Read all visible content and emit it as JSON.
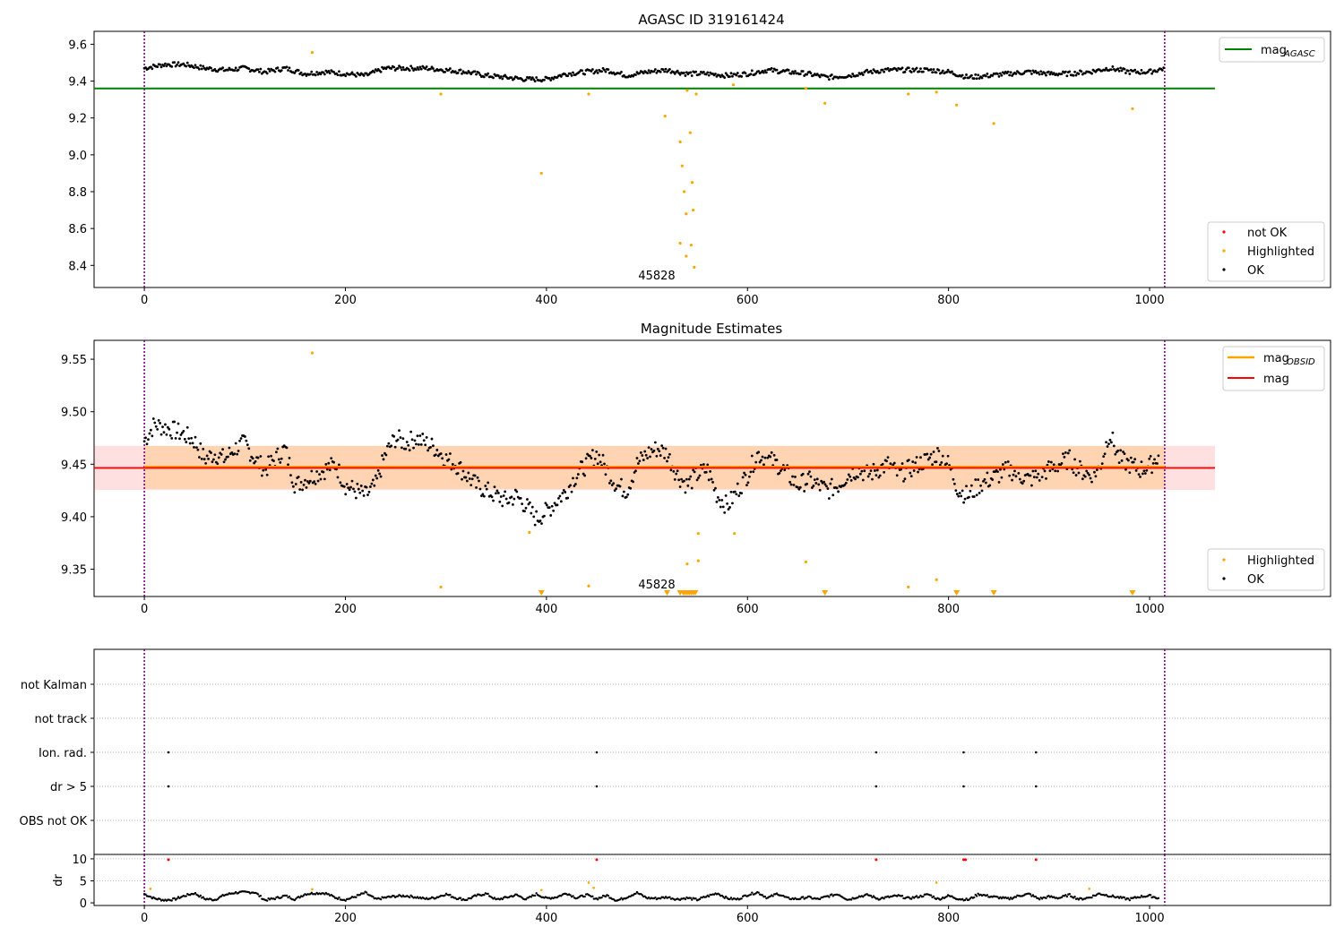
{
  "chart_data": [
    {
      "type": "scatter",
      "title": "AGASC ID 319161424",
      "xlim": [
        -50,
        1180
      ],
      "ylim": [
        8.28,
        9.67
      ],
      "xticks": [
        0,
        200,
        400,
        600,
        800,
        1000
      ],
      "yticks": [
        8.4,
        8.6,
        8.8,
        9.0,
        9.2,
        9.4,
        9.6
      ],
      "ytick_labels": [
        "8.4",
        "8.6",
        "8.8",
        "9.0",
        "9.2",
        "9.4",
        "9.6"
      ],
      "annotation": {
        "text": "45828",
        "x": 507,
        "y": 8.33
      },
      "vlines": [
        0,
        1015
      ],
      "hline": {
        "name": "mag_AGASC",
        "y": 9.36,
        "x0": -50,
        "x1": 1065,
        "color": "#008000"
      },
      "legend_top": [
        {
          "label": "mag",
          "sub": "AGASC",
          "color": "#008000"
        }
      ],
      "legend_bottom": [
        {
          "label": "not OK",
          "color": "#ff0000"
        },
        {
          "label": "Highlighted",
          "color": "#ffa500"
        },
        {
          "label": "OK",
          "color": "#000000"
        }
      ],
      "highlighted": [
        [
          167,
          9.555
        ],
        [
          295,
          9.33
        ],
        [
          395,
          8.9
        ],
        [
          442,
          9.33
        ],
        [
          518,
          9.21
        ],
        [
          533,
          9.07
        ],
        [
          535,
          8.94
        ],
        [
          537,
          8.8
        ],
        [
          539,
          8.68
        ],
        [
          533,
          8.52
        ],
        [
          539,
          8.45
        ],
        [
          543,
          9.12
        ],
        [
          545,
          8.85
        ],
        [
          546,
          8.7
        ],
        [
          544,
          8.51
        ],
        [
          547,
          8.39
        ],
        [
          549,
          9.33
        ],
        [
          540,
          9.35
        ],
        [
          586,
          9.38
        ],
        [
          658,
          9.36
        ],
        [
          677,
          9.28
        ],
        [
          760,
          9.33
        ],
        [
          788,
          9.34
        ],
        [
          808,
          9.27
        ],
        [
          845,
          9.17
        ],
        [
          983,
          9.25
        ]
      ],
      "ok_series": {
        "name": "OK",
        "x": [
          0,
          20,
          40,
          60,
          80,
          100,
          120,
          140,
          160,
          180,
          200,
          220,
          240,
          260,
          280,
          300,
          320,
          340,
          360,
          380,
          400,
          420,
          440,
          460,
          480,
          500,
          520,
          540,
          560,
          580,
          600,
          620,
          640,
          660,
          680,
          700,
          720,
          740,
          760,
          780,
          800,
          820,
          840,
          860,
          880,
          900,
          920,
          940,
          960,
          980,
          1000,
          1015
        ],
        "y": [
          9.47,
          9.49,
          9.49,
          9.47,
          9.46,
          9.47,
          9.45,
          9.47,
          9.44,
          9.45,
          9.44,
          9.43,
          9.47,
          9.47,
          9.47,
          9.46,
          9.45,
          9.43,
          9.42,
          9.41,
          9.41,
          9.44,
          9.45,
          9.46,
          9.43,
          9.45,
          9.46,
          9.44,
          9.44,
          9.43,
          9.44,
          9.46,
          9.45,
          9.44,
          9.42,
          9.43,
          9.45,
          9.46,
          9.46,
          9.46,
          9.45,
          9.42,
          9.43,
          9.44,
          9.45,
          9.44,
          9.44,
          9.45,
          9.47,
          9.45,
          9.45,
          9.47
        ]
      }
    },
    {
      "type": "scatter",
      "title": "Magnitude Estimates",
      "xlim": [
        -50,
        1180
      ],
      "ylim": [
        9.324,
        9.568
      ],
      "xticks": [
        0,
        200,
        400,
        600,
        800,
        1000
      ],
      "yticks": [
        9.35,
        9.4,
        9.45,
        9.5,
        9.55
      ],
      "ytick_labels": [
        "9.35",
        "9.40",
        "9.45",
        "9.50",
        "9.55"
      ],
      "annotation": {
        "text": "45828",
        "x": 507,
        "y": 9.336
      },
      "vlines": [
        0,
        1015
      ],
      "mag_line": {
        "name": "mag",
        "y": 9.4465,
        "band": [
          9.4255,
          9.4675
        ],
        "x0": -50,
        "x1": 1065,
        "color": "#ff0000"
      },
      "mag_obsid_line": {
        "name": "mag_OBSID",
        "y": 9.4475,
        "band": [
          9.4265,
          9.4675
        ],
        "x0": 0,
        "x1": 1015,
        "color": "#ffa500"
      },
      "legend_top": [
        {
          "label": "mag",
          "sub": "OBSID",
          "color": "#ffa500"
        },
        {
          "label": "mag",
          "sub": "",
          "color": "#ff0000"
        }
      ],
      "legend_bottom": [
        {
          "label": "Highlighted",
          "color": "#ffa500"
        },
        {
          "label": "OK",
          "color": "#000000"
        }
      ],
      "highlighted": [
        [
          167,
          9.556
        ],
        [
          295,
          9.333
        ],
        [
          383,
          9.385
        ],
        [
          442,
          9.334
        ],
        [
          551,
          9.384
        ],
        [
          551,
          9.358
        ],
        [
          540,
          9.355
        ],
        [
          587,
          9.384
        ],
        [
          658,
          9.357
        ],
        [
          760,
          9.333
        ],
        [
          788,
          9.34
        ]
      ],
      "clipped_low": [
        395,
        520,
        533,
        536,
        538,
        540,
        542,
        544,
        546,
        548,
        677,
        808,
        845,
        983
      ],
      "ok_series": {
        "name": "OK",
        "x": [
          0,
          10,
          20,
          30,
          40,
          50,
          60,
          70,
          80,
          90,
          100,
          110,
          120,
          130,
          140,
          150,
          160,
          170,
          180,
          190,
          200,
          210,
          220,
          230,
          240,
          250,
          260,
          270,
          280,
          290,
          300,
          310,
          320,
          330,
          340,
          350,
          360,
          370,
          380,
          390,
          400,
          410,
          420,
          430,
          440,
          450,
          460,
          470,
          480,
          490,
          500,
          510,
          520,
          530,
          540,
          550,
          560,
          570,
          580,
          590,
          600,
          610,
          620,
          630,
          640,
          650,
          660,
          670,
          680,
          690,
          700,
          710,
          720,
          730,
          740,
          750,
          760,
          770,
          780,
          790,
          800,
          810,
          820,
          830,
          840,
          850,
          860,
          870,
          880,
          890,
          900,
          910,
          920,
          930,
          940,
          950,
          960,
          970,
          980,
          990,
          1000,
          1010
        ],
        "y": [
          9.472,
          9.488,
          9.485,
          9.482,
          9.478,
          9.472,
          9.455,
          9.46,
          9.455,
          9.465,
          9.47,
          9.455,
          9.445,
          9.455,
          9.465,
          9.43,
          9.435,
          9.44,
          9.445,
          9.45,
          9.43,
          9.425,
          9.42,
          9.43,
          9.46,
          9.475,
          9.47,
          9.475,
          9.47,
          9.465,
          9.455,
          9.45,
          9.44,
          9.43,
          9.425,
          9.42,
          9.415,
          9.42,
          9.41,
          9.398,
          9.405,
          9.415,
          9.425,
          9.44,
          9.45,
          9.46,
          9.445,
          9.43,
          9.425,
          9.45,
          9.46,
          9.465,
          9.46,
          9.44,
          9.43,
          9.44,
          9.445,
          9.42,
          9.41,
          9.425,
          9.44,
          9.46,
          9.455,
          9.45,
          9.44,
          9.43,
          9.435,
          9.43,
          9.425,
          9.43,
          9.44,
          9.445,
          9.44,
          9.445,
          9.45,
          9.44,
          9.445,
          9.45,
          9.455,
          9.46,
          9.45,
          9.425,
          9.42,
          9.43,
          9.435,
          9.44,
          9.445,
          9.44,
          9.435,
          9.44,
          9.445,
          9.45,
          9.455,
          9.445,
          9.44,
          9.445,
          9.48,
          9.455,
          9.45,
          9.445,
          9.448,
          9.46
        ]
      }
    },
    {
      "type": "scatter",
      "title": "",
      "xlim": [
        -50,
        1180
      ],
      "vlines": [
        0,
        1015
      ],
      "flag_rows": [
        "not Kalman",
        "not track",
        "Ion. rad.",
        "dr > 5",
        "OBS not OK"
      ],
      "flags": {
        "Ion. rad.": [
          24,
          450,
          728,
          815,
          887
        ],
        "dr > 5": [
          24,
          450,
          728,
          815,
          887
        ]
      }
    },
    {
      "type": "scatter",
      "ylabel": "dr",
      "xlim": [
        -50,
        1180
      ],
      "ylim": [
        -0.6,
        11.0
      ],
      "xticks": [
        0,
        200,
        400,
        600,
        800,
        1000
      ],
      "yticks": [
        0,
        5,
        10
      ],
      "ytick_labels": [
        "0",
        "5",
        "10"
      ],
      "vlines": [
        0,
        1015
      ],
      "ok_series": {
        "name": "OK",
        "x": [
          0,
          10,
          20,
          30,
          40,
          50,
          60,
          70,
          80,
          90,
          100,
          110,
          120,
          130,
          140,
          150,
          160,
          170,
          180,
          190,
          200,
          210,
          220,
          230,
          240,
          250,
          260,
          270,
          280,
          290,
          300,
          310,
          320,
          330,
          340,
          350,
          360,
          370,
          380,
          390,
          400,
          410,
          420,
          430,
          440,
          450,
          460,
          470,
          480,
          490,
          500,
          510,
          520,
          530,
          540,
          550,
          560,
          570,
          580,
          590,
          600,
          610,
          620,
          630,
          640,
          650,
          660,
          670,
          680,
          690,
          700,
          710,
          720,
          730,
          740,
          750,
          760,
          770,
          780,
          790,
          800,
          810,
          820,
          830,
          840,
          850,
          860,
          870,
          880,
          890,
          900,
          910,
          920,
          930,
          940,
          950,
          960,
          970,
          980,
          990,
          1000,
          1010
        ],
        "y": [
          2.0,
          1.0,
          0.6,
          0.8,
          1.6,
          2.2,
          0.9,
          0.7,
          1.8,
          2.3,
          2.4,
          2.4,
          0.6,
          1.0,
          1.6,
          0.8,
          2.0,
          2.2,
          2.2,
          1.2,
          0.7,
          1.4,
          2.3,
          0.8,
          1.2,
          1.5,
          1.6,
          1.3,
          0.9,
          1.2,
          2.0,
          1.1,
          0.7,
          1.6,
          2.1,
          0.7,
          1.2,
          1.8,
          0.8,
          2.0,
          1.0,
          1.3,
          2.2,
          1.1,
          1.8,
          0.9,
          1.7,
          0.5,
          1.3,
          2.3,
          1.1,
          1.0,
          1.3,
          0.8,
          1.1,
          0.7,
          1.5,
          2.2,
          1.0,
          0.8,
          1.8,
          2.4,
          1.1,
          2.1,
          1.0,
          0.9,
          1.3,
          0.8,
          1.5,
          2.0,
          0.7,
          1.4,
          1.8,
          0.9,
          1.3,
          1.6,
          1.0,
          1.4,
          1.9,
          0.8,
          1.6,
          0.9,
          0.7,
          2.0,
          1.5,
          1.2,
          0.9,
          1.6,
          2.0,
          0.9,
          1.4,
          1.1,
          1.8,
          0.8,
          1.2,
          2.1,
          1.6,
          1.2,
          0.8,
          1.4,
          1.6,
          1.0
        ]
      },
      "highlighted": [
        [
          6,
          3.2
        ],
        [
          167,
          3.1
        ],
        [
          395,
          2.9
        ],
        [
          442,
          4.6
        ],
        [
          447,
          3.4
        ],
        [
          788,
          4.6
        ],
        [
          940,
          3.2
        ]
      ],
      "not_ok": [
        [
          24,
          9.8
        ],
        [
          450,
          9.8
        ],
        [
          728,
          9.8
        ],
        [
          815,
          9.8
        ],
        [
          817,
          9.8
        ],
        [
          887,
          9.8
        ]
      ]
    }
  ]
}
